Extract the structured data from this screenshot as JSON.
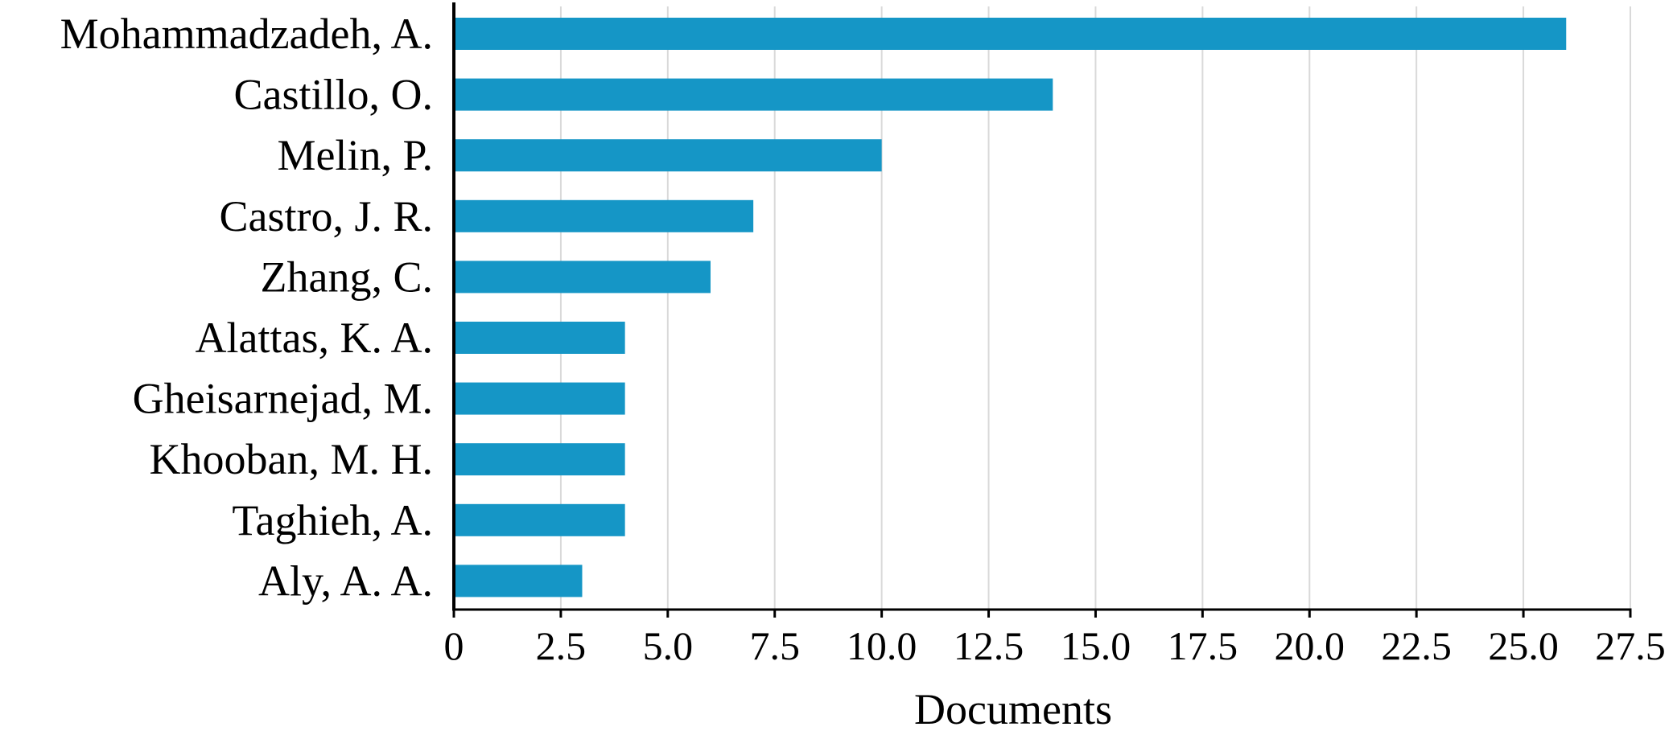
{
  "chart_data": {
    "type": "bar",
    "orientation": "horizontal",
    "title": "",
    "xlabel": "Documents",
    "ylabel": "",
    "categories": [
      "Mohammadzadeh, A.",
      "Castillo, O.",
      "Melin, P.",
      "Castro, J. R.",
      "Zhang, C.",
      "Alattas, K. A.",
      "Gheisarnejad, M.",
      "Khooban, M. H.",
      "Taghieh, A.",
      "Aly, A. A."
    ],
    "values": [
      26,
      14,
      10,
      7,
      6,
      4,
      4,
      4,
      4,
      3
    ],
    "xlim": [
      0,
      27.5
    ],
    "x_ticks": [
      "0",
      "2.5",
      "5.0",
      "7.5",
      "10.0",
      "12.5",
      "15.0",
      "17.5",
      "20.0",
      "22.5",
      "25.0",
      "27.5"
    ],
    "grid": "vertical",
    "legend": "none",
    "bar_color": "#1596c6",
    "grid_color": "#d9d9d9",
    "axis_color": "#000000"
  }
}
